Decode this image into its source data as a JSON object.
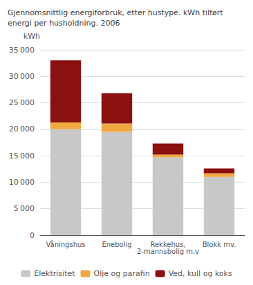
{
  "chart_data": {
    "type": "bar",
    "title": "Gjennomsnittlig energiforbruk, etter hustype. kWh tilført\nenergi per husholdning. 2006",
    "ylabel": "kWh",
    "categories": [
      "Våningshus",
      "Enebolig",
      "Rekkehus,\n2-mannsbolig m.v",
      "Blokk mv."
    ],
    "series": [
      {
        "name": "Elektrisitet",
        "color": "#c8c8c8",
        "values": [
          20000,
          19500,
          14700,
          11000
        ]
      },
      {
        "name": "Olje og parafin",
        "color": "#f0a840",
        "values": [
          1300,
          1600,
          500,
          700
        ]
      },
      {
        "name": "Ved, kull og koks",
        "color": "#8b1010",
        "values": [
          11700,
          5700,
          2100,
          900
        ]
      }
    ],
    "stacked": true,
    "ylim": [
      0,
      35000
    ],
    "yticks": [
      0,
      {
        "value": 5000,
        "label": "5 000"
      },
      {
        "value": 10000,
        "label": "10 000"
      },
      {
        "value": 15000,
        "label": "15 000"
      },
      {
        "value": 20000,
        "label": "20 000"
      },
      {
        "value": 25000,
        "label": "25 000"
      },
      {
        "value": 30000,
        "label": "30 000"
      },
      {
        "value": 35000,
        "label": "35 000"
      }
    ],
    "grid": true,
    "legend": "bottom"
  }
}
